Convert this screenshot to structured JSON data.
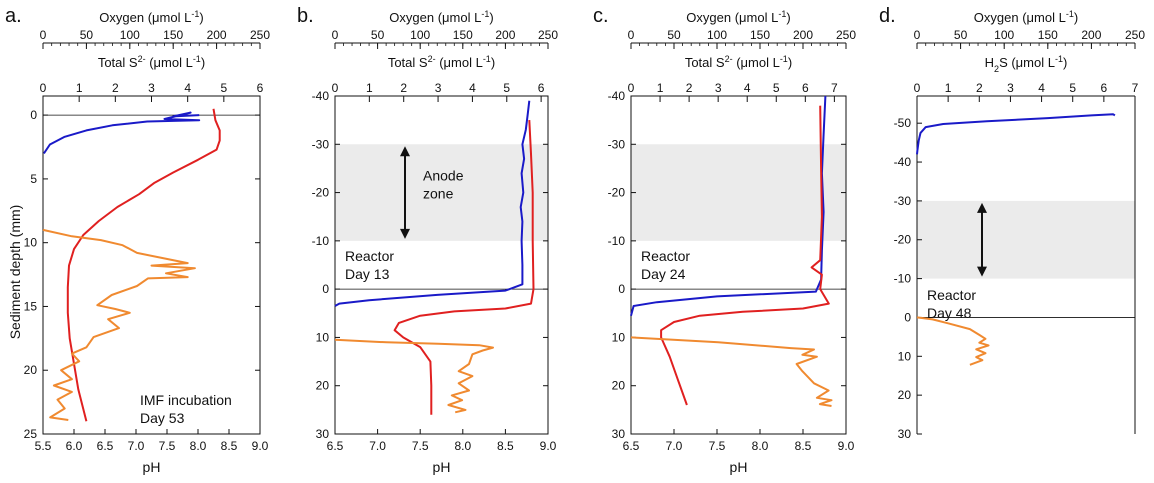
{
  "figure": {
    "shared_ylabel": "Sediment depth (mm)",
    "oxygen_label": "Oxygen (μmol L",
    "sulfide_label_a": "Total S",
    "sulfide_label_d_main": "H",
    "sulfide_label_d_sub": "2",
    "sulfide_label_d_rest": "S (μmol L",
    "unit_suffix": "-1",
    "unit_close": ")",
    "ph_label": "pH",
    "sulfide_super": "2-"
  },
  "colors": {
    "oxygen": "#1a1ac8",
    "sulfide": "#f08a30",
    "ph": "#e02020",
    "zone": "#ebebeb",
    "axis": "#111111"
  },
  "chart_data": [
    {
      "panel": "a.",
      "type": "line",
      "annotation": [
        "IMF incubation",
        "Day 53"
      ],
      "oxygen_axis": {
        "ticks": [
          0,
          50,
          100,
          150,
          200,
          250
        ],
        "lim": [
          0,
          250
        ]
      },
      "sulfide_axis": {
        "ticks": [
          0,
          1,
          2,
          3,
          4,
          5,
          6
        ],
        "lim": [
          0,
          6
        ]
      },
      "ph_axis": {
        "ticks": [
          "5.5",
          "6.0",
          "6.5",
          "7.0",
          "7.5",
          "8.0",
          "8.5",
          "9.0"
        ],
        "lim": [
          5.5,
          9.0
        ]
      },
      "depth_axis": {
        "ticks": [
          0,
          5,
          10,
          15,
          20,
          25
        ],
        "lim": [
          -1.5,
          25
        ]
      },
      "anode_zone": null,
      "series": [
        {
          "kind": "oxygen",
          "points": [
            [
              180,
              0.0
            ],
            [
              150,
              0.1
            ],
            [
              170,
              -0.2
            ],
            [
              140,
              0.3
            ],
            [
              180,
              0.4
            ],
            [
              120,
              0.5
            ],
            [
              80,
              0.8
            ],
            [
              50,
              1.2
            ],
            [
              25,
              1.7
            ],
            [
              8,
              2.3
            ],
            [
              1,
              3.0
            ]
          ]
        },
        {
          "kind": "ph",
          "points": [
            [
              8.25,
              -0.5
            ],
            [
              8.28,
              0.4
            ],
            [
              8.35,
              1.2
            ],
            [
              8.35,
              2.0
            ],
            [
              8.3,
              2.7
            ],
            [
              8.0,
              3.5
            ],
            [
              7.6,
              4.5
            ],
            [
              7.3,
              5.3
            ],
            [
              7.05,
              6.2
            ],
            [
              6.7,
              7.2
            ],
            [
              6.4,
              8.3
            ],
            [
              6.15,
              9.4
            ],
            [
              6.0,
              10.5
            ],
            [
              5.92,
              11.8
            ],
            [
              5.9,
              13.5
            ],
            [
              5.9,
              15.5
            ],
            [
              5.93,
              17.5
            ],
            [
              6.0,
              19.5
            ],
            [
              6.07,
              21.5
            ],
            [
              6.2,
              24.0
            ]
          ]
        },
        {
          "kind": "sulfide",
          "points": [
            [
              0.0,
              9.0
            ],
            [
              0.8,
              9.5
            ],
            [
              1.6,
              9.8
            ],
            [
              2.2,
              10.2
            ],
            [
              2.6,
              10.8
            ],
            [
              3.3,
              11.2
            ],
            [
              4.0,
              11.6
            ],
            [
              3.0,
              11.8
            ],
            [
              4.2,
              12.0
            ],
            [
              3.4,
              12.4
            ],
            [
              4.0,
              12.7
            ],
            [
              2.9,
              12.8
            ],
            [
              2.6,
              13.4
            ],
            [
              1.9,
              14.1
            ],
            [
              1.5,
              14.9
            ],
            [
              2.0,
              15.2
            ],
            [
              2.4,
              15.5
            ],
            [
              1.8,
              16.0
            ],
            [
              2.1,
              16.7
            ],
            [
              1.4,
              17.4
            ],
            [
              1.2,
              18.2
            ],
            [
              0.8,
              18.7
            ],
            [
              1.0,
              19.3
            ],
            [
              0.5,
              20.0
            ],
            [
              0.8,
              20.7
            ],
            [
              0.3,
              21.2
            ],
            [
              0.8,
              21.7
            ],
            [
              0.4,
              22.3
            ],
            [
              0.6,
              23.0
            ],
            [
              0.2,
              23.7
            ],
            [
              0.7,
              23.9
            ]
          ]
        }
      ]
    },
    {
      "panel": "b.",
      "type": "line",
      "annotation": [
        "Reactor",
        "Day 13"
      ],
      "zone_label": [
        "Anode",
        "zone"
      ],
      "oxygen_axis": {
        "ticks": [
          0,
          50,
          100,
          150,
          200,
          250
        ],
        "lim": [
          0,
          250
        ]
      },
      "sulfide_axis": {
        "ticks": [
          0,
          1,
          2,
          3,
          4,
          5,
          6
        ],
        "lim": [
          0,
          6.2
        ]
      },
      "ph_axis": {
        "ticks": [
          "6.5",
          "7.0",
          "7.5",
          "8.0",
          "8.5",
          "9.0"
        ],
        "lim": [
          6.5,
          9.0
        ]
      },
      "depth_axis": {
        "ticks": [
          -40,
          -30,
          -20,
          -10,
          0,
          10,
          20,
          30
        ],
        "lim": [
          -40,
          30
        ]
      },
      "anode_zone": [
        -30,
        -10
      ],
      "series": [
        {
          "kind": "oxygen",
          "points": [
            [
              228,
              -39
            ],
            [
              226,
              -36
            ],
            [
              224,
              -33
            ],
            [
              220,
              -30
            ],
            [
              222,
              -27
            ],
            [
              219,
              -24
            ],
            [
              221,
              -20
            ],
            [
              218,
              -17
            ],
            [
              220,
              -14
            ],
            [
              219,
              -10
            ],
            [
              220,
              -5
            ],
            [
              220,
              -1
            ],
            [
              200,
              0.3
            ],
            [
              120,
              1.2
            ],
            [
              40,
              2.3
            ],
            [
              5,
              3.0
            ],
            [
              0,
              3.5
            ]
          ]
        },
        {
          "kind": "ph",
          "points": [
            [
              8.78,
              -35
            ],
            [
              8.8,
              -28
            ],
            [
              8.82,
              -20
            ],
            [
              8.82,
              -10
            ],
            [
              8.83,
              0
            ],
            [
              8.8,
              3
            ],
            [
              8.5,
              4
            ],
            [
              7.9,
              4.6
            ],
            [
              7.5,
              5.5
            ],
            [
              7.25,
              7.0
            ],
            [
              7.2,
              8.5
            ],
            [
              7.3,
              10
            ],
            [
              7.5,
              12
            ],
            [
              7.62,
              15
            ],
            [
              7.63,
              20
            ],
            [
              7.63,
              26
            ]
          ]
        },
        {
          "kind": "sulfide",
          "points": [
            [
              0.0,
              10.5
            ],
            [
              1.5,
              11.0
            ],
            [
              3.0,
              11.3
            ],
            [
              4.2,
              11.6
            ],
            [
              4.6,
              12.1
            ],
            [
              4.3,
              12.7
            ],
            [
              4.0,
              13.5
            ],
            [
              3.9,
              15.5
            ],
            [
              3.6,
              17
            ],
            [
              4.0,
              18
            ],
            [
              3.6,
              19.5
            ],
            [
              3.9,
              21
            ],
            [
              3.4,
              22
            ],
            [
              3.7,
              23
            ],
            [
              3.3,
              24
            ],
            [
              3.8,
              25
            ],
            [
              3.5,
              25.5
            ]
          ]
        }
      ]
    },
    {
      "panel": "c.",
      "type": "line",
      "annotation": [
        "Reactor",
        "Day 24"
      ],
      "oxygen_axis": {
        "ticks": [
          0,
          50,
          100,
          150,
          200,
          250
        ],
        "lim": [
          0,
          250
        ]
      },
      "sulfide_axis": {
        "ticks": [
          0,
          1,
          2,
          3,
          4,
          5,
          6,
          7
        ],
        "lim": [
          0,
          7.4
        ]
      },
      "ph_axis": {
        "ticks": [
          "6.5",
          "7.0",
          "7.5",
          "8.0",
          "8.5",
          "9.0"
        ],
        "lim": [
          6.5,
          9.0
        ]
      },
      "depth_axis": {
        "ticks": [
          -40,
          -30,
          -20,
          -10,
          0,
          10,
          20,
          30
        ],
        "lim": [
          -40,
          30
        ]
      },
      "anode_zone": [
        -30,
        -10
      ],
      "series": [
        {
          "kind": "oxygen",
          "points": [
            [
              226,
              -40
            ],
            [
              224,
              -32
            ],
            [
              222,
              -24
            ],
            [
              224,
              -16
            ],
            [
              222,
              -8
            ],
            [
              221,
              -2
            ],
            [
              215,
              0.5
            ],
            [
              100,
              1.5
            ],
            [
              30,
              2.7
            ],
            [
              3,
              3.5
            ],
            [
              0,
              5.5
            ]
          ]
        },
        {
          "kind": "ph",
          "points": [
            [
              8.7,
              -38
            ],
            [
              8.71,
              -25
            ],
            [
              8.72,
              -15
            ],
            [
              8.7,
              -6
            ],
            [
              8.6,
              -4.5
            ],
            [
              8.72,
              -3
            ],
            [
              8.7,
              0
            ],
            [
              8.8,
              3
            ],
            [
              8.5,
              4
            ],
            [
              7.8,
              4.7
            ],
            [
              7.3,
              5.5
            ],
            [
              7.0,
              6.8
            ],
            [
              6.85,
              8.5
            ],
            [
              6.85,
              10
            ],
            [
              6.95,
              14
            ],
            [
              7.05,
              19
            ],
            [
              7.15,
              24
            ]
          ]
        },
        {
          "kind": "sulfide",
          "points": [
            [
              0.0,
              10.0
            ],
            [
              3.0,
              11.0
            ],
            [
              5.5,
              12.2
            ],
            [
              6.3,
              12.5
            ],
            [
              5.9,
              13.6
            ],
            [
              6.4,
              14
            ],
            [
              5.7,
              15.5
            ],
            [
              5.9,
              17
            ],
            [
              6.3,
              19.5
            ],
            [
              6.8,
              21
            ],
            [
              6.4,
              22.5
            ],
            [
              6.9,
              23
            ],
            [
              6.5,
              23.8
            ],
            [
              6.9,
              24.2
            ]
          ]
        }
      ]
    },
    {
      "panel": "d.",
      "type": "line",
      "annotation": [
        "Reactor",
        "Day 48"
      ],
      "oxygen_axis": {
        "ticks": [
          0,
          50,
          100,
          150,
          200,
          250
        ],
        "lim": [
          0,
          250
        ]
      },
      "sulfide_axis": {
        "ticks": [
          0,
          1,
          2,
          3,
          4,
          5,
          6,
          7
        ],
        "lim": [
          0,
          7
        ]
      },
      "ph_axis": null,
      "depth_axis": {
        "ticks": [
          -50,
          -40,
          -30,
          -20,
          -10,
          0,
          10,
          20,
          30
        ],
        "lim": [
          -57,
          30
        ]
      },
      "anode_zone": [
        -30,
        -10
      ],
      "series": [
        {
          "kind": "oxygen",
          "points": [
            [
              227,
              -52
            ],
            [
              225,
              -52.3
            ],
            [
              200,
              -52
            ],
            [
              150,
              -51.3
            ],
            [
              80,
              -50.5
            ],
            [
              30,
              -49.8
            ],
            [
              10,
              -49
            ],
            [
              4,
              -47.5
            ],
            [
              2,
              -45.5
            ],
            [
              0.5,
              -43
            ],
            [
              0,
              -42
            ]
          ]
        },
        {
          "kind": "sulfide",
          "points": [
            [
              0.0,
              0.0
            ],
            [
              0.5,
              0.5
            ],
            [
              1.0,
              1.5
            ],
            [
              1.7,
              3.0
            ],
            [
              2.0,
              4.5
            ],
            [
              2.2,
              5.5
            ],
            [
              2.0,
              6.5
            ],
            [
              2.3,
              7.2
            ],
            [
              1.9,
              8.2
            ],
            [
              2.2,
              9.2
            ],
            [
              1.9,
              10.2
            ],
            [
              2.1,
              11.0
            ],
            [
              1.7,
              12.2
            ]
          ]
        }
      ]
    }
  ]
}
